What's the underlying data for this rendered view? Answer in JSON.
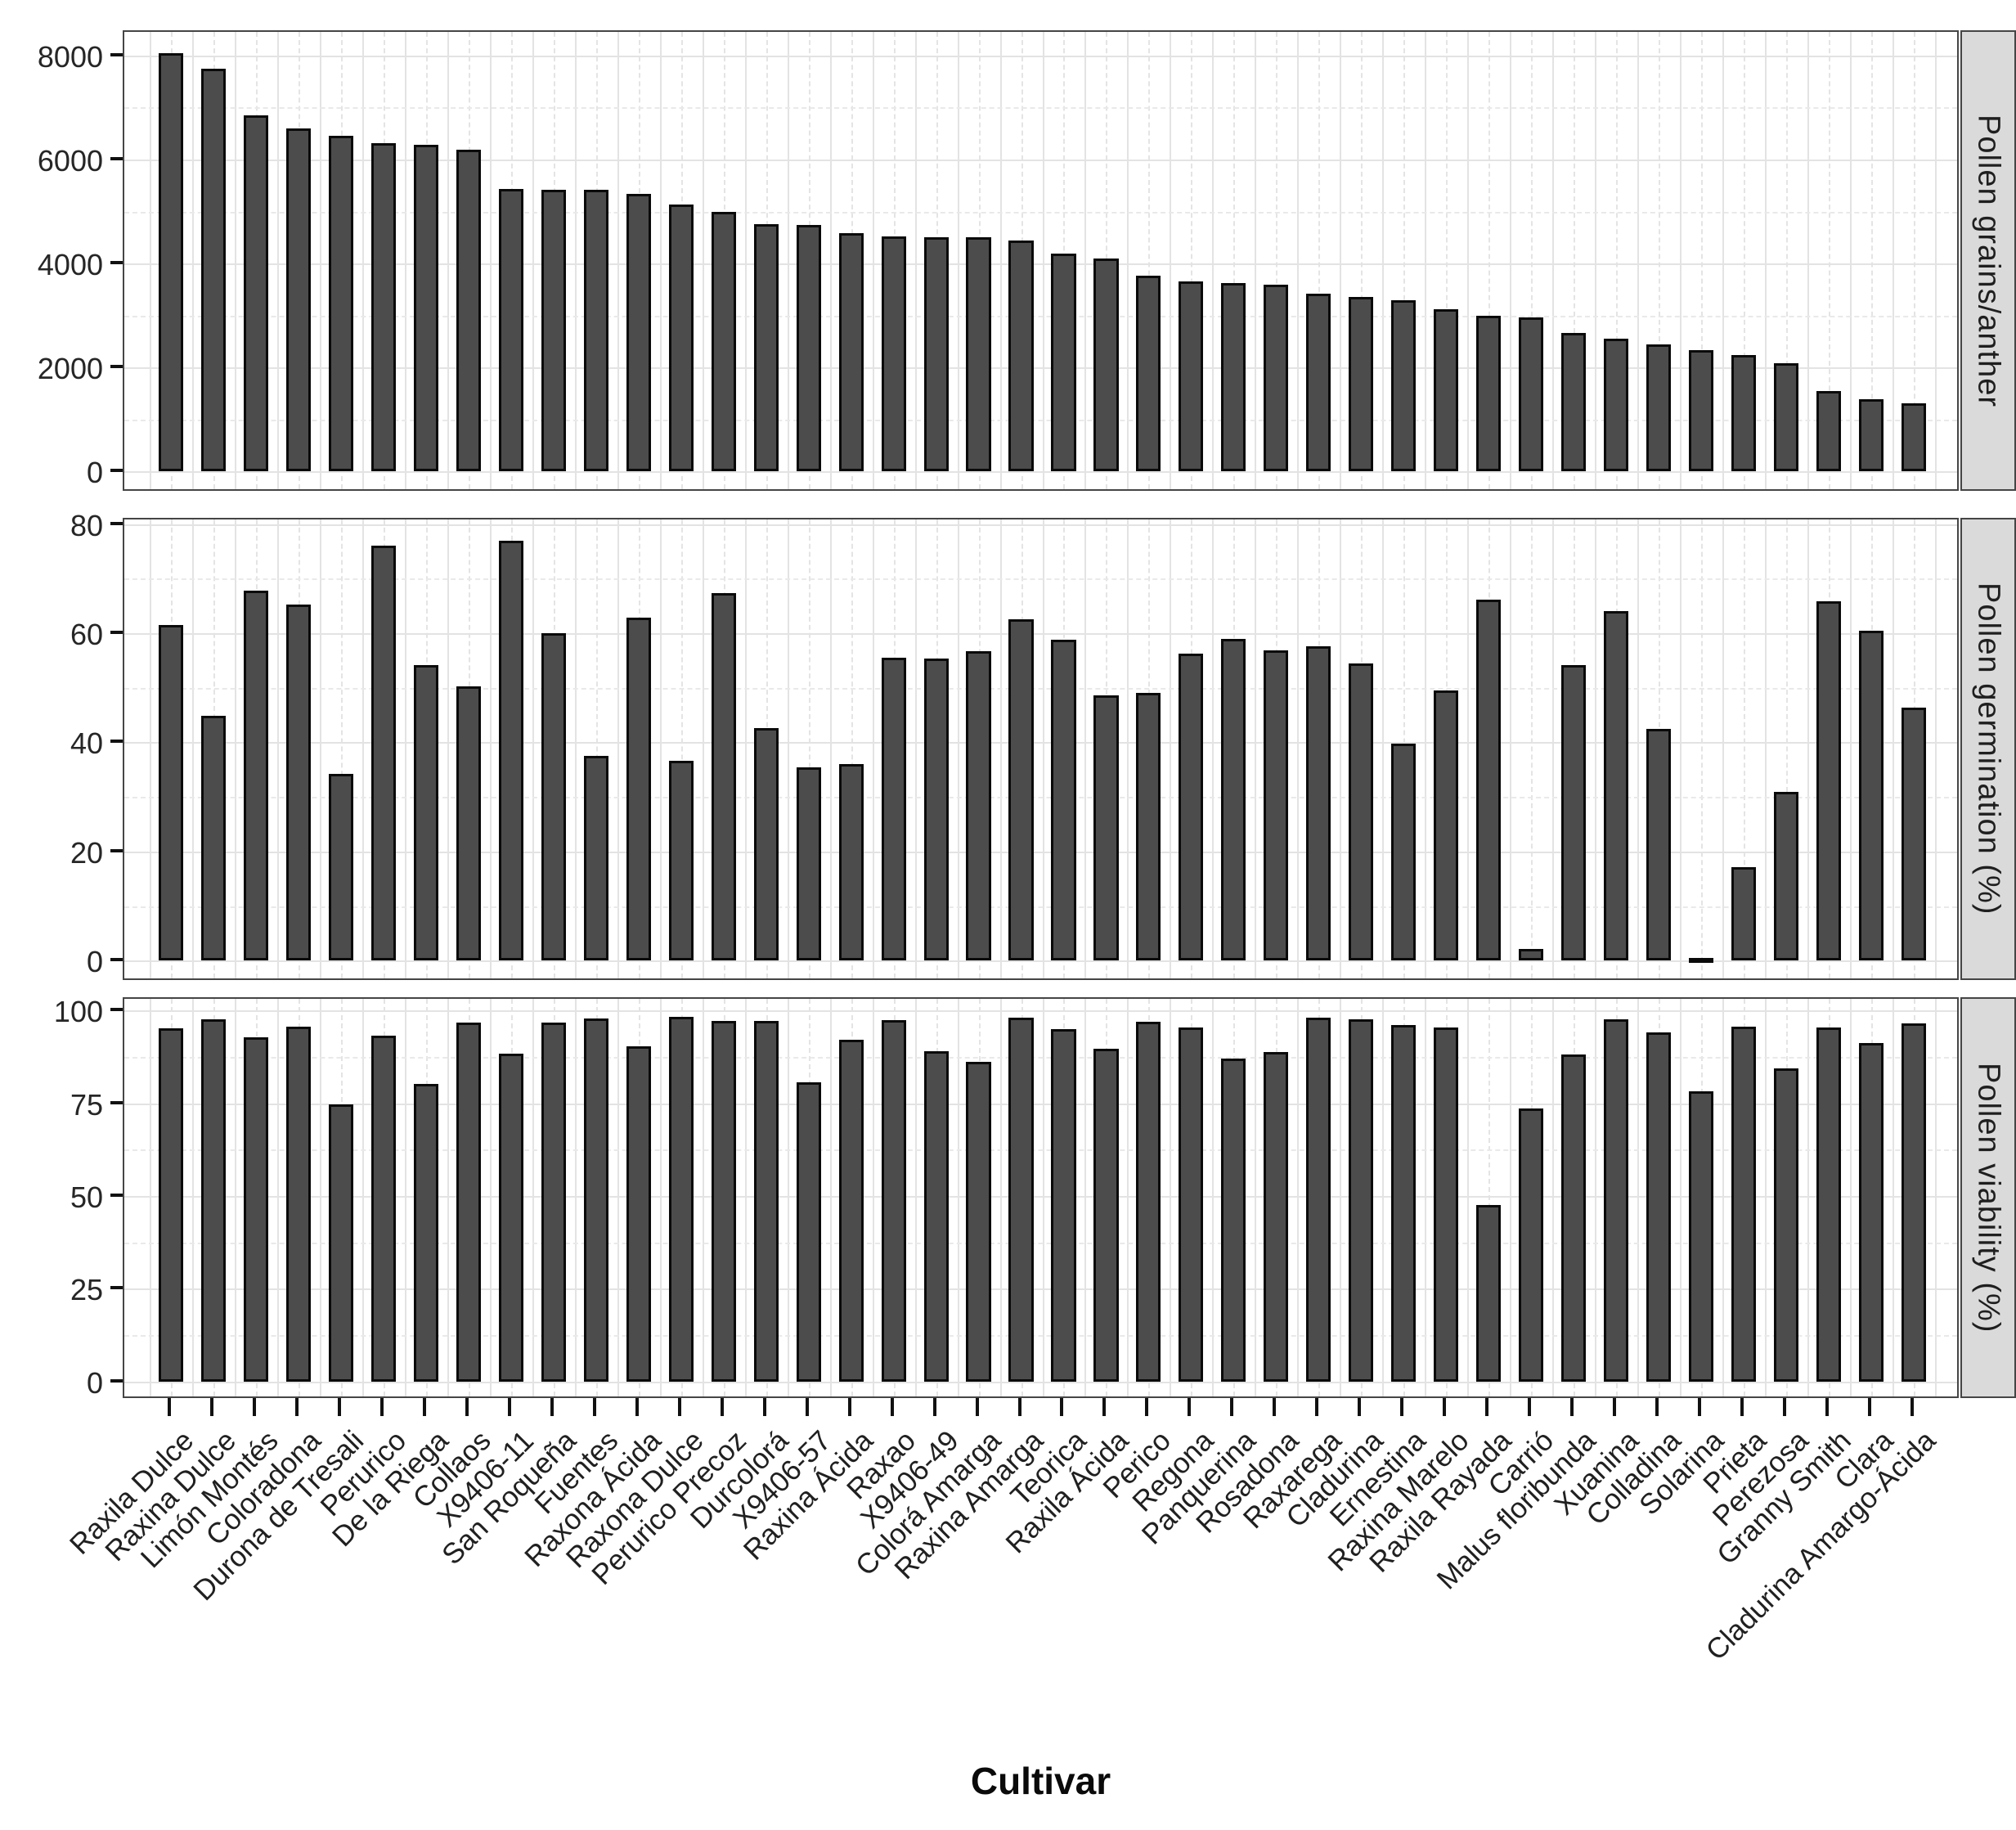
{
  "chart_data": {
    "type": "bar",
    "title": "",
    "axis_title": "Cultivar",
    "legend": "none",
    "grid": "on",
    "bar_fill": "#4c4c4c",
    "bar_stroke": "#0a0a0a",
    "strip_bg": "#dadada",
    "grid_major_color": "#e3e3e3",
    "panel_border_color": "#454545",
    "categories": [
      "Raxila Dulce",
      "Raxina Dulce",
      "Limón Montés",
      "Coloradona",
      "Durona de Tresali",
      "Perurico",
      "De la Riega",
      "Collaos",
      "X9406-11",
      "San Roqueña",
      "Fuentes",
      "Raxona Ácida",
      "Raxona Dulce",
      "Perurico Precoz",
      "Durcolorá",
      "X9406-57",
      "Raxina Ácida",
      "Raxao",
      "X9406-49",
      "Colorá Amarga",
      "Raxina Amarga",
      "Teorica",
      "Raxila Ácida",
      "Perico",
      "Regona",
      "Panquerina",
      "Rosadona",
      "Raxarega",
      "Cladurina",
      "Ernestina",
      "Raxina Marelo",
      "Raxila Rayada",
      "Carrió",
      "Malus floribunda",
      "Xuanina",
      "Colladina",
      "Solarina",
      "Prieta",
      "Perezosa",
      "Granny Smith",
      "Clara",
      "Cladurina Amargo-Ácida"
    ],
    "panels": [
      {
        "label": "Pollen grains/anther",
        "ticks": [
          0,
          2000,
          4000,
          6000,
          8000
        ],
        "tick_labels": [
          "0",
          "2000",
          "4000",
          "6000",
          "8000"
        ],
        "ylim": [
          0,
          8400
        ],
        "values": [
          8050,
          7750,
          6850,
          6600,
          6450,
          6320,
          6280,
          6180,
          5430,
          5420,
          5420,
          5340,
          5130,
          5000,
          4760,
          4740,
          4580,
          4520,
          4510,
          4500,
          4440,
          4190,
          4090,
          3770,
          3650,
          3620,
          3600,
          3420,
          3360,
          3300,
          3120,
          2990,
          2960,
          2660,
          2560,
          2440,
          2340,
          2240,
          2080,
          1540,
          1390,
          1310
        ]
      },
      {
        "label": "Pollen germination (%)",
        "ticks": [
          0,
          20,
          40,
          60,
          80
        ],
        "tick_labels": [
          "0",
          "20",
          "40",
          "60",
          "80"
        ],
        "ylim": [
          0,
          81
        ],
        "values": [
          61.5,
          44.8,
          67.8,
          65.2,
          34.2,
          76.1,
          54.2,
          50.3,
          77.0,
          60.0,
          37.6,
          62.9,
          36.6,
          67.4,
          42.6,
          35.4,
          36.1,
          55.5,
          55.4,
          56.7,
          62.5,
          58.8,
          48.6,
          49.0,
          56.2,
          58.9,
          56.9,
          57.6,
          54.5,
          39.8,
          49.5,
          66.2,
          2.1,
          54.1,
          64.1,
          42.4,
          0.4,
          17.1,
          31.0,
          65.9,
          60.4,
          46.4
        ]
      },
      {
        "label": "Pollen viability (%)",
        "ticks": [
          0,
          25,
          50,
          75,
          100
        ],
        "tick_labels": [
          "0",
          "25",
          "50",
          "75",
          "100"
        ],
        "ylim": [
          0,
          103
        ],
        "values": [
          95.2,
          97.6,
          92.8,
          95.6,
          74.6,
          93.2,
          80.1,
          96.7,
          88.3,
          96.8,
          97.8,
          90.4,
          98.2,
          97.2,
          97.1,
          80.6,
          92.1,
          97.4,
          89.0,
          86.2,
          98.1,
          95.0,
          89.6,
          96.9,
          95.4,
          87.0,
          88.8,
          98.0,
          97.5,
          96.1,
          95.5,
          47.5,
          73.6,
          88.1,
          97.6,
          94.1,
          78.2,
          95.7,
          84.3,
          95.3,
          91.2,
          96.6
        ]
      }
    ]
  }
}
